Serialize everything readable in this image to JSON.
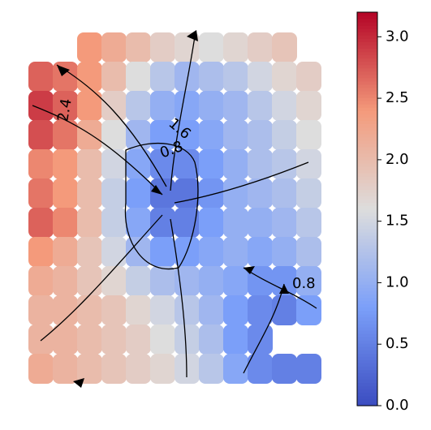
{
  "chart_data": {
    "type": "heatmap",
    "colormap": "coolwarm",
    "values": [
      [
        null,
        null,
        2.4,
        2.2,
        2.0,
        1.8,
        1.7,
        1.6,
        1.7,
        1.8,
        1.9,
        null
      ],
      [
        2.7,
        2.6,
        2.4,
        2.0,
        1.6,
        1.3,
        1.1,
        1.2,
        1.3,
        1.5,
        1.7,
        1.8
      ],
      [
        2.9,
        2.7,
        2.4,
        1.8,
        1.3,
        1.0,
        0.9,
        1.0,
        1.1,
        1.3,
        1.5,
        1.7
      ],
      [
        2.8,
        2.6,
        2.2,
        1.6,
        1.1,
        0.8,
        0.8,
        0.9,
        1.1,
        1.2,
        1.4,
        1.6
      ],
      [
        2.5,
        2.4,
        2.0,
        1.5,
        0.9,
        0.6,
        0.6,
        0.8,
        1.0,
        1.2,
        1.3,
        1.5
      ],
      [
        2.6,
        2.4,
        2.0,
        1.4,
        0.8,
        0.4,
        0.4,
        0.7,
        1.0,
        1.1,
        1.2,
        1.4
      ],
      [
        2.7,
        2.5,
        2.0,
        1.4,
        0.9,
        0.5,
        0.5,
        0.8,
        1.0,
        1.0,
        1.1,
        1.3
      ],
      [
        2.4,
        2.2,
        1.9,
        1.5,
        1.1,
        0.8,
        0.8,
        0.9,
        1.0,
        0.9,
        1.0,
        1.2
      ],
      [
        2.2,
        2.1,
        1.9,
        1.7,
        1.4,
        1.2,
        1.1,
        1.0,
        0.9,
        0.7,
        0.7,
        1.0
      ],
      [
        2.1,
        2.1,
        2.0,
        1.9,
        1.7,
        1.5,
        1.3,
        1.1,
        0.8,
        0.6,
        0.5,
        0.8
      ],
      [
        2.1,
        2.1,
        2.0,
        1.9,
        1.8,
        1.6,
        1.4,
        1.2,
        0.8,
        0.6,
        null,
        null
      ],
      [
        2.2,
        2.1,
        2.0,
        1.9,
        1.8,
        1.7,
        1.5,
        1.3,
        0.9,
        0.6,
        0.5,
        0.5
      ]
    ],
    "contour_labels": [
      "2.4",
      "1.6",
      "0.8",
      "0.8"
    ],
    "colorbar": {
      "lim": [
        0,
        3.2
      ],
      "ticks": [
        {
          "value": 0,
          "label": "0.0"
        },
        {
          "value": 0.5,
          "label": "0.5"
        },
        {
          "value": 1,
          "label": "1.0"
        },
        {
          "value": 1.5,
          "label": "1.5"
        },
        {
          "value": 2,
          "label": "2.0"
        },
        {
          "value": 2.5,
          "label": "2.5"
        },
        {
          "value": 3,
          "label": "3.0"
        }
      ]
    }
  }
}
